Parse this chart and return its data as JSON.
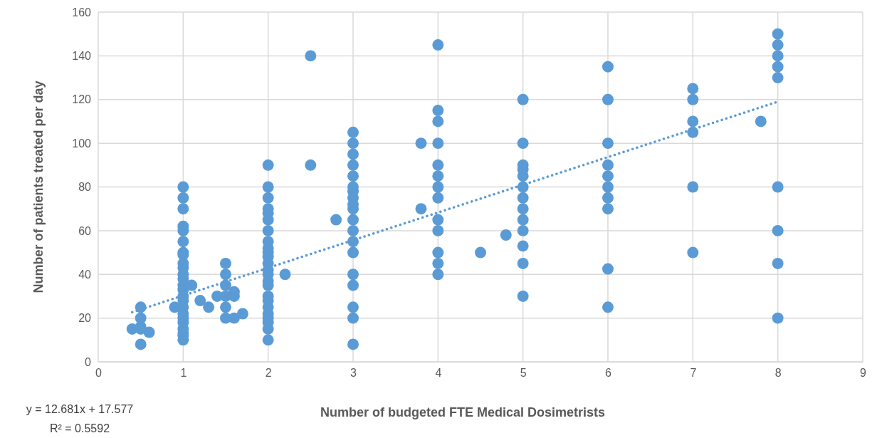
{
  "chart_data": {
    "type": "scatter",
    "xlabel": "Number of budgeted FTE Medical Dosimetrists",
    "ylabel": "Number of patients treated per day",
    "xlim": [
      0,
      9
    ],
    "xticks": [
      0,
      1,
      2,
      3,
      4,
      5,
      6,
      7,
      8,
      9
    ],
    "ylim": [
      0,
      160
    ],
    "yticks": [
      0,
      20,
      40,
      60,
      80,
      100,
      120,
      140,
      160
    ],
    "grid": true,
    "marker": "circle",
    "annotations": [
      "y = 12.681x + 17.577",
      "R² = 0.5592"
    ],
    "series": [
      {
        "color": "#5b9bd5",
        "x": [
          0.4,
          0.5,
          0.5,
          0.5,
          0.5,
          0.5,
          0.6,
          0.9,
          1,
          1,
          1,
          1,
          1,
          1,
          1,
          1,
          1,
          1,
          1,
          1,
          1,
          1,
          1,
          1,
          1,
          1,
          1,
          1,
          1,
          1,
          1,
          1,
          1.1,
          1.2,
          1.3,
          1.4,
          1.5,
          1.5,
          1.5,
          1.5,
          1.5,
          1.5,
          1.6,
          1.6,
          1.6,
          1.7,
          2,
          2,
          2,
          2,
          2,
          2,
          2,
          2,
          2,
          2,
          2,
          2,
          2,
          2,
          2,
          2,
          2,
          2,
          2,
          2,
          2,
          2,
          2,
          2,
          2.2,
          2.5,
          2.5,
          2.8,
          3,
          3,
          3,
          3,
          3,
          3,
          3,
          3,
          3,
          3,
          3,
          3,
          3,
          3,
          3,
          3,
          3,
          3,
          3,
          3.8,
          3.8,
          4,
          4,
          4,
          4,
          4,
          4,
          4,
          4,
          4,
          4,
          4,
          4,
          4,
          4.5,
          4.8,
          5,
          5,
          5,
          5,
          5,
          5,
          5,
          5,
          5,
          5,
          5,
          5,
          5,
          6,
          6,
          6,
          6,
          6,
          6,
          6,
          6,
          6,
          6,
          7,
          7,
          7,
          7,
          7,
          7,
          7.8,
          8,
          8,
          8,
          8,
          8,
          8,
          8,
          8,
          8
        ],
        "values": [
          15,
          25,
          20,
          16,
          15,
          8,
          13.5,
          25,
          80,
          75,
          70,
          62,
          60,
          55,
          50,
          49,
          45,
          43,
          40,
          38,
          35,
          33,
          30,
          28,
          25,
          22,
          20,
          18,
          15,
          13,
          12,
          10,
          35,
          28,
          25,
          30,
          45,
          40,
          35,
          30,
          25,
          20,
          32,
          30,
          20,
          22,
          90,
          80,
          75,
          70,
          68,
          65,
          60,
          55,
          52,
          50,
          48,
          45,
          42,
          40,
          37,
          35,
          30,
          28,
          25,
          22,
          20,
          18,
          15,
          10,
          40,
          140,
          90,
          65,
          105,
          100,
          95,
          90,
          85,
          80,
          78,
          75,
          72,
          70,
          65,
          60,
          55,
          50,
          40,
          35,
          25,
          20,
          8,
          100,
          70,
          145,
          115,
          110,
          100,
          90,
          85,
          80,
          75,
          65,
          60,
          50,
          45,
          40,
          50,
          58,
          120,
          100,
          90,
          88,
          85,
          80,
          75,
          70,
          65,
          60,
          53,
          45,
          30,
          135,
          120,
          100,
          90,
          85,
          80,
          75,
          70,
          42.5,
          25,
          125,
          120,
          110,
          105,
          80,
          50,
          110,
          150,
          145,
          140,
          135,
          130,
          80,
          60,
          45,
          20
        ]
      },
      {
        "type": "line",
        "color": "#5b9bd5",
        "line_style": "dotted",
        "marker": "none",
        "x": [
          0.4,
          8
        ],
        "values": [
          22.7,
          119
        ]
      }
    ]
  }
}
